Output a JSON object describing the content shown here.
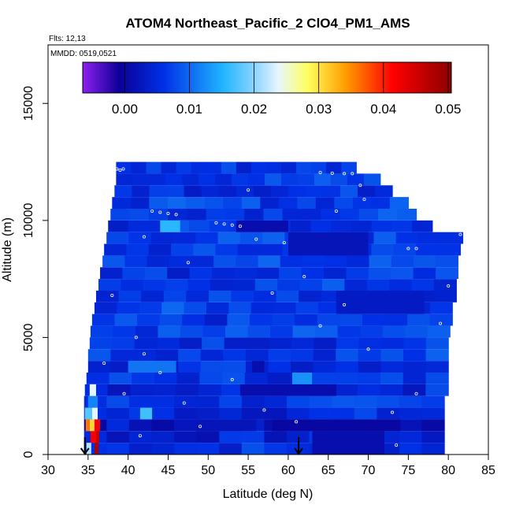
{
  "chart_data": {
    "type": "heatmap",
    "title": "ATOM4 Northeast_Pacific_2 ClO4_PM1_AMS",
    "flights_label": "Flts: 12,13",
    "dates_label": "MMDD: 0519,0521",
    "xlabel": "Latitude (deg N)",
    "ylabel": "Altitude (m)",
    "xlim": [
      30,
      85
    ],
    "ylim": [
      0,
      17500
    ],
    "x_ticks": [
      "30",
      "35",
      "40",
      "45",
      "50",
      "55",
      "60",
      "65",
      "70",
      "75",
      "80",
      "85"
    ],
    "y_ticks": [
      "0",
      "5000",
      "10000",
      "15000"
    ],
    "colorbar": {
      "range": [
        -0.0065,
        0.0505
      ],
      "ticks": [
        "0.00",
        "0.01",
        "0.02",
        "0.03",
        "0.04",
        "0.05"
      ],
      "colors": {
        "purple": "#8f1ff0",
        "navy": "#0a0096",
        "blue": "#0030e6",
        "sky": "#20b4ff",
        "pale": "#e6f6ff",
        "yellow": "#ffff60",
        "orange": "#ffa000",
        "red": "#ff0000",
        "darkred": "#8c0000"
      }
    },
    "layers": [
      {
        "alt_min": 0,
        "alt_max": 500,
        "lat_min": 34.5,
        "lat_max": 79.5,
        "value": 0.006
      },
      {
        "alt_min": 500,
        "alt_max": 1000,
        "lat_min": 34.5,
        "lat_max": 79.5,
        "value": 0.004
      },
      {
        "alt_min": 1000,
        "alt_max": 1500,
        "lat_min": 34.5,
        "lat_max": 79.5,
        "value": 0.002
      },
      {
        "alt_min": 1500,
        "alt_max": 2000,
        "lat_min": 34.5,
        "lat_max": 79.5,
        "value": 0.005
      },
      {
        "alt_min": 2000,
        "alt_max": 2500,
        "lat_min": 34.5,
        "lat_max": 79.5,
        "value": 0.006
      },
      {
        "alt_min": 2500,
        "alt_max": 3000,
        "lat_min": 34.6,
        "lat_max": 80.0,
        "value": 0.005
      },
      {
        "alt_min": 3000,
        "alt_max": 3500,
        "lat_min": 34.8,
        "lat_max": 80.0,
        "value": 0.006
      },
      {
        "alt_min": 3500,
        "alt_max": 4000,
        "lat_min": 35.0,
        "lat_max": 80.0,
        "value": 0.006
      },
      {
        "alt_min": 4000,
        "alt_max": 4500,
        "lat_min": 35.0,
        "lat_max": 80.0,
        "value": 0.007
      },
      {
        "alt_min": 4500,
        "alt_max": 5000,
        "lat_min": 35.2,
        "lat_max": 80.0,
        "value": 0.006
      },
      {
        "alt_min": 5000,
        "alt_max": 5500,
        "lat_min": 35.3,
        "lat_max": 80.2,
        "value": 0.007
      },
      {
        "alt_min": 5500,
        "alt_max": 6000,
        "lat_min": 35.5,
        "lat_max": 80.5,
        "value": 0.006
      },
      {
        "alt_min": 6000,
        "alt_max": 6500,
        "lat_min": 35.8,
        "lat_max": 80.5,
        "value": 0.007
      },
      {
        "alt_min": 6500,
        "alt_max": 7000,
        "lat_min": 36.0,
        "lat_max": 81.0,
        "value": 0.006
      },
      {
        "alt_min": 7000,
        "alt_max": 7500,
        "lat_min": 36.3,
        "lat_max": 81.0,
        "value": 0.007
      },
      {
        "alt_min": 7500,
        "alt_max": 8000,
        "lat_min": 36.5,
        "lat_max": 81.2,
        "value": 0.006
      },
      {
        "alt_min": 8000,
        "alt_max": 8500,
        "lat_min": 36.8,
        "lat_max": 81.2,
        "value": 0.007
      },
      {
        "alt_min": 8500,
        "alt_max": 9000,
        "lat_min": 37.0,
        "lat_max": 81.5,
        "value": 0.006
      },
      {
        "alt_min": 9000,
        "alt_max": 9500,
        "lat_min": 37.3,
        "lat_max": 81.8,
        "value": 0.007
      },
      {
        "alt_min": 9500,
        "alt_max": 10000,
        "lat_min": 37.5,
        "lat_max": 78.0,
        "value": 0.006
      },
      {
        "alt_min": 10000,
        "alt_max": 10500,
        "lat_min": 37.8,
        "lat_max": 76.0,
        "value": 0.007
      },
      {
        "alt_min": 10500,
        "alt_max": 11000,
        "lat_min": 38.0,
        "lat_max": 75.0,
        "value": 0.007
      },
      {
        "alt_min": 11000,
        "alt_max": 11500,
        "lat_min": 38.3,
        "lat_max": 73.0,
        "value": 0.006
      },
      {
        "alt_min": 11500,
        "alt_max": 12000,
        "lat_min": 38.5,
        "lat_max": 71.5,
        "value": 0.007
      },
      {
        "alt_min": 12000,
        "alt_max": 12500,
        "lat_min": 38.5,
        "lat_max": 68.5,
        "value": 0.006
      }
    ],
    "features": [
      {
        "alt_min": 0,
        "alt_max": 500,
        "lat_min": 34.8,
        "lat_max": 35.4,
        "value": 0.022
      },
      {
        "alt_min": 0,
        "alt_max": 500,
        "lat_min": 35.8,
        "lat_max": 36.3,
        "value": 0.048
      },
      {
        "alt_min": 500,
        "alt_max": 1000,
        "lat_min": 35.3,
        "lat_max": 36.0,
        "value": 0.042
      },
      {
        "alt_min": 500,
        "alt_max": 1000,
        "lat_min": 36.0,
        "lat_max": 36.4,
        "value": 0.046
      },
      {
        "alt_min": 1000,
        "alt_max": 1500,
        "lat_min": 34.7,
        "lat_max": 35.2,
        "value": 0.036
      },
      {
        "alt_min": 1000,
        "alt_max": 1500,
        "lat_min": 35.2,
        "lat_max": 35.8,
        "value": 0.031
      },
      {
        "alt_min": 1000,
        "alt_max": 1500,
        "lat_min": 35.8,
        "lat_max": 36.5,
        "value": 0.042
      },
      {
        "alt_min": 1500,
        "alt_max": 2000,
        "lat_min": 34.6,
        "lat_max": 35.5,
        "value": 0.018
      },
      {
        "alt_min": 1500,
        "alt_max": 2000,
        "lat_min": 35.5,
        "lat_max": 36.2,
        "value": 0.024
      },
      {
        "alt_min": 1500,
        "alt_max": 2000,
        "lat_min": 41.5,
        "lat_max": 43.0,
        "value": 0.017
      },
      {
        "alt_min": 2000,
        "alt_max": 2500,
        "lat_min": 35.0,
        "lat_max": 36.2,
        "value": 0.012
      },
      {
        "alt_min": 2500,
        "alt_max": 3000,
        "lat_min": 35.2,
        "lat_max": 36.0,
        "value": 0.024
      },
      {
        "alt_min": 9500,
        "alt_max": 10000,
        "lat_min": 44.0,
        "lat_max": 46.5,
        "value": 0.016
      },
      {
        "alt_min": 0,
        "alt_max": 1000,
        "lat_min": 63.0,
        "lat_max": 72.0,
        "value": 0.001
      },
      {
        "alt_min": 1000,
        "alt_max": 1500,
        "lat_min": 58.0,
        "lat_max": 74.0,
        "value": 0.0
      },
      {
        "alt_min": 1000,
        "alt_max": 1500,
        "lat_min": 48.5,
        "lat_max": 56.0,
        "value": 0.002
      },
      {
        "alt_min": 2500,
        "alt_max": 3000,
        "lat_min": 54.0,
        "lat_max": 66.0,
        "value": 0.001
      },
      {
        "alt_min": 3500,
        "alt_max": 4000,
        "lat_min": 55.5,
        "lat_max": 57.0,
        "value": 0.001
      },
      {
        "alt_min": 9500,
        "alt_max": 10000,
        "lat_min": 53.5,
        "lat_max": 60.0,
        "value": 0.001
      },
      {
        "alt_min": 8500,
        "alt_max": 9500,
        "lat_min": 60.0,
        "lat_max": 70.0,
        "value": 0.002
      },
      {
        "alt_min": 6000,
        "alt_max": 7000,
        "lat_min": 66.0,
        "lat_max": 77.0,
        "value": 0.003
      },
      {
        "alt_min": 3000,
        "alt_max": 3500,
        "lat_min": 60.5,
        "lat_max": 63.0,
        "value": 0.013
      },
      {
        "alt_min": 3500,
        "alt_max": 4000,
        "lat_min": 40.0,
        "lat_max": 46.0,
        "value": 0.011
      }
    ],
    "flight_tracks": [
      {
        "lat": 38.6,
        "alt": 12200
      },
      {
        "lat": 39.0,
        "alt": 12150
      },
      {
        "lat": 39.4,
        "alt": 12200
      },
      {
        "lat": 43.0,
        "alt": 10400
      },
      {
        "lat": 44.0,
        "alt": 10350
      },
      {
        "lat": 45.0,
        "alt": 10300
      },
      {
        "lat": 46.0,
        "alt": 10250
      },
      {
        "lat": 51.0,
        "alt": 9900
      },
      {
        "lat": 52.0,
        "alt": 9850
      },
      {
        "lat": 53.0,
        "alt": 9800
      },
      {
        "lat": 54.0,
        "alt": 9750
      },
      {
        "lat": 56.0,
        "alt": 9200
      },
      {
        "lat": 59.5,
        "alt": 9050
      },
      {
        "lat": 64.0,
        "alt": 12050
      },
      {
        "lat": 65.5,
        "alt": 12020
      },
      {
        "lat": 67.0,
        "alt": 12000
      },
      {
        "lat": 68.0,
        "alt": 12000
      },
      {
        "lat": 69.0,
        "alt": 11500
      },
      {
        "lat": 69.5,
        "alt": 10900
      },
      {
        "lat": 75.0,
        "alt": 8800
      },
      {
        "lat": 76.0,
        "alt": 8800
      },
      {
        "lat": 81.5,
        "alt": 9400
      },
      {
        "lat": 42.0,
        "alt": 9300
      },
      {
        "lat": 38.0,
        "alt": 6800
      },
      {
        "lat": 41.0,
        "alt": 5000
      },
      {
        "lat": 42.0,
        "alt": 4300
      },
      {
        "lat": 44.0,
        "alt": 3500
      },
      {
        "lat": 47.0,
        "alt": 2200
      },
      {
        "lat": 49.0,
        "alt": 1200
      },
      {
        "lat": 53.0,
        "alt": 3200
      },
      {
        "lat": 57.0,
        "alt": 1900
      },
      {
        "lat": 61.0,
        "alt": 1400
      },
      {
        "lat": 62.0,
        "alt": 7600
      },
      {
        "lat": 64.0,
        "alt": 5500
      },
      {
        "lat": 67.0,
        "alt": 6400
      },
      {
        "lat": 70.0,
        "alt": 4500
      },
      {
        "lat": 73.0,
        "alt": 1800
      },
      {
        "lat": 73.5,
        "alt": 400
      },
      {
        "lat": 76.0,
        "alt": 2600
      },
      {
        "lat": 79.0,
        "alt": 5600
      },
      {
        "lat": 80.0,
        "alt": 7200
      },
      {
        "lat": 41.5,
        "alt": 800
      },
      {
        "lat": 39.5,
        "alt": 2600
      },
      {
        "lat": 37.0,
        "alt": 3900
      },
      {
        "lat": 55.0,
        "alt": 11300
      },
      {
        "lat": 47.5,
        "alt": 8200
      },
      {
        "lat": 58.0,
        "alt": 6900
      },
      {
        "lat": 66.0,
        "alt": 10400
      }
    ],
    "markers": [
      {
        "lat": 34.6,
        "alt": 0,
        "label": "arrow"
      },
      {
        "lat": 61.3,
        "alt": 0,
        "label": "arrow"
      }
    ]
  }
}
